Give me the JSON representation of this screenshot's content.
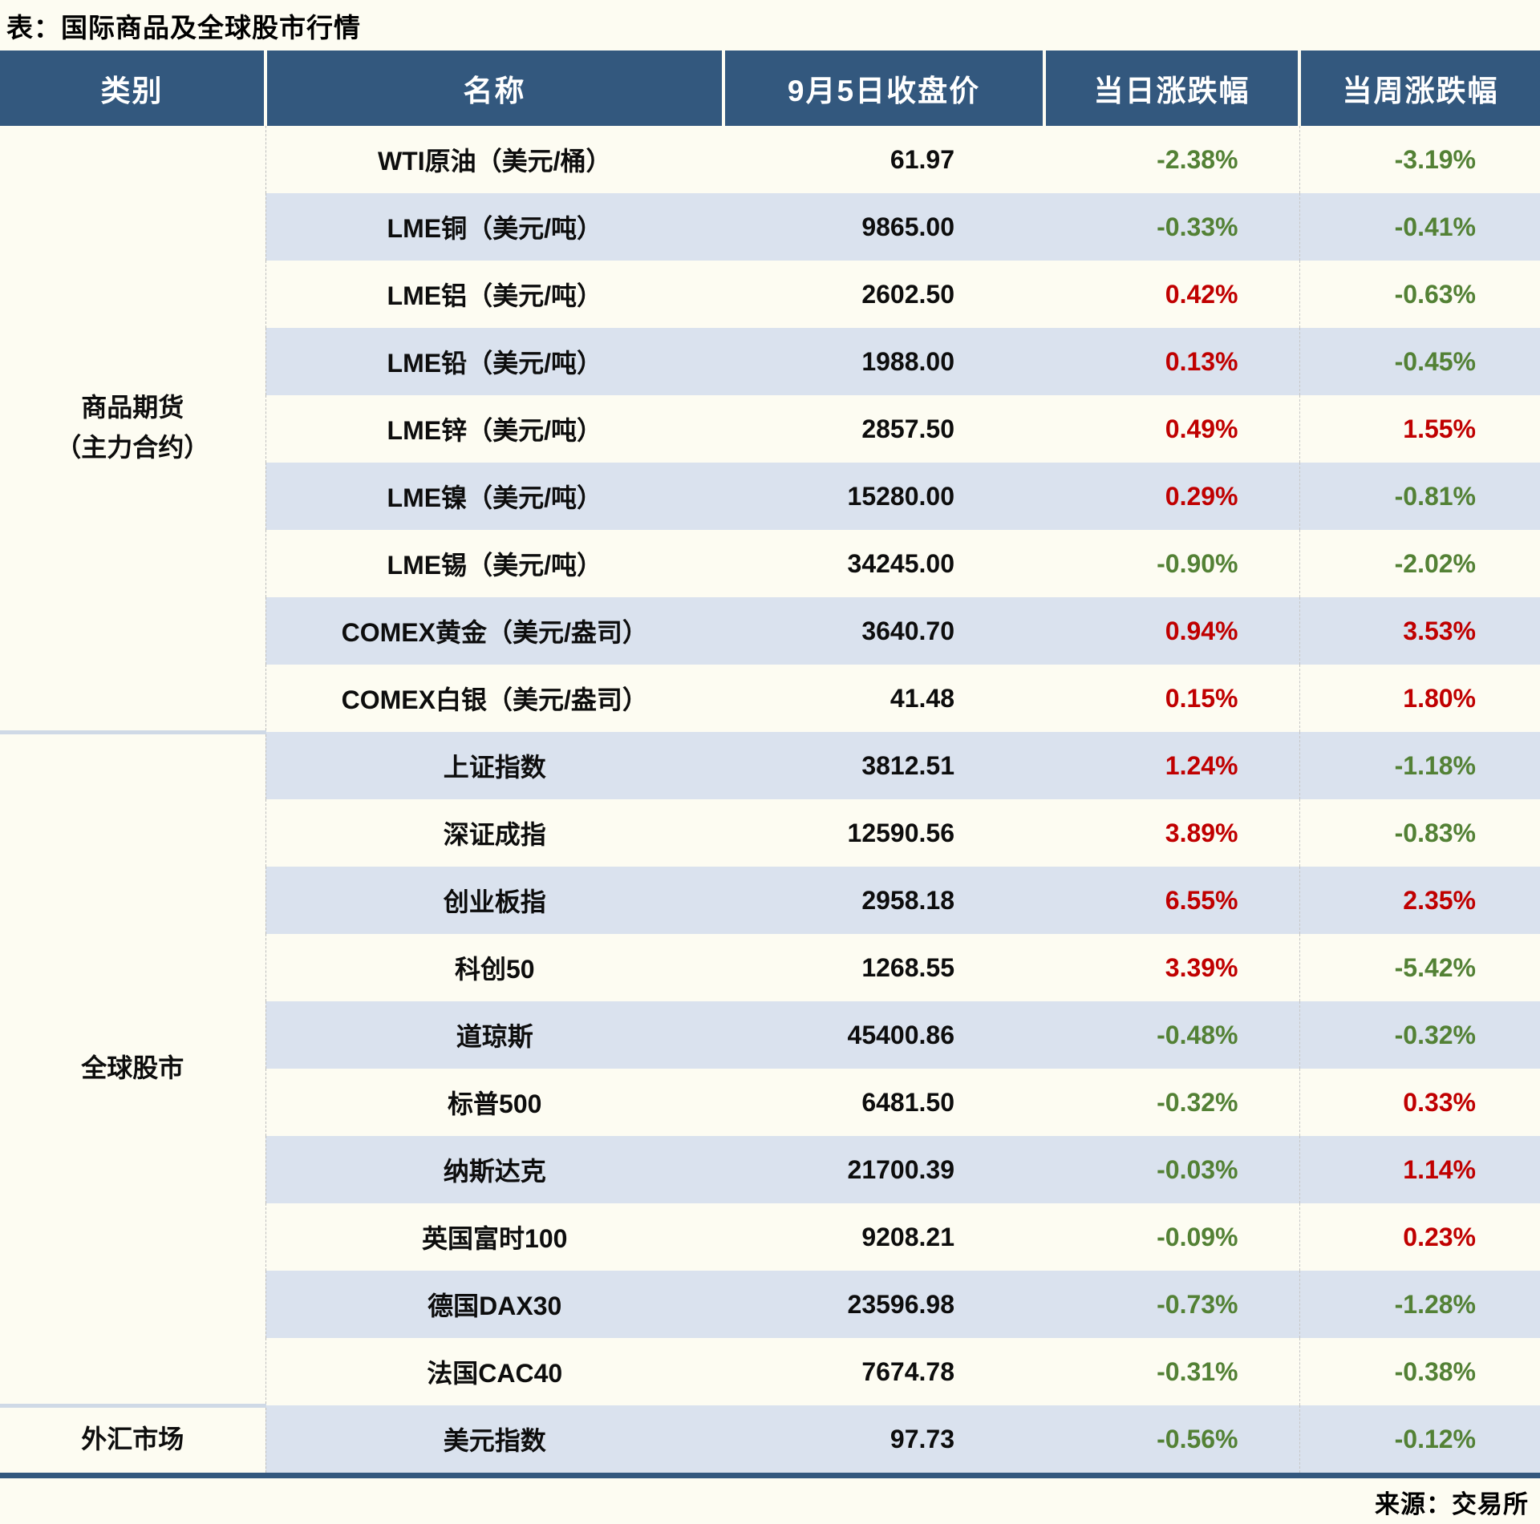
{
  "title": "表：国际商品及全球股市行情",
  "source": "来源：交易所",
  "colors": {
    "header_background": "#33587E",
    "row_stripe": "#dae2ee",
    "page_background": "#fdfcf2",
    "positive_change": "#C00000",
    "negative_change": "#538135",
    "header_text": "#ffffff",
    "body_text": "#0d0d0d"
  },
  "chart_data": {
    "type": "table",
    "title": "国际商品及全球股市行情",
    "columns": [
      "类别",
      "名称",
      "9月5日收盘价",
      "当日涨跌幅",
      "当周涨跌幅"
    ],
    "sections": [
      {
        "category": [
          "商品期货",
          "（主力合约）"
        ],
        "rows": [
          {
            "name": "WTI原油（美元/桶）",
            "close": "61.97",
            "day_change": "-2.38%",
            "week_change": "-3.19%"
          },
          {
            "name": "LME铜（美元/吨）",
            "close": "9865.00",
            "day_change": "-0.33%",
            "week_change": "-0.41%"
          },
          {
            "name": "LME铝（美元/吨）",
            "close": "2602.50",
            "day_change": "0.42%",
            "week_change": "-0.63%"
          },
          {
            "name": "LME铅（美元/吨）",
            "close": "1988.00",
            "day_change": "0.13%",
            "week_change": "-0.45%"
          },
          {
            "name": "LME锌（美元/吨）",
            "close": "2857.50",
            "day_change": "0.49%",
            "week_change": "1.55%"
          },
          {
            "name": "LME镍（美元/吨）",
            "close": "15280.00",
            "day_change": "0.29%",
            "week_change": "-0.81%"
          },
          {
            "name": "LME锡（美元/吨）",
            "close": "34245.00",
            "day_change": "-0.90%",
            "week_change": "-2.02%"
          },
          {
            "name": "COMEX黄金（美元/盎司）",
            "close": "3640.70",
            "day_change": "0.94%",
            "week_change": "3.53%"
          },
          {
            "name": "COMEX白银（美元/盎司）",
            "close": "41.48",
            "day_change": "0.15%",
            "week_change": "1.80%"
          }
        ]
      },
      {
        "category": [
          "全球股市"
        ],
        "rows": [
          {
            "name": "上证指数",
            "close": "3812.51",
            "day_change": "1.24%",
            "week_change": "-1.18%"
          },
          {
            "name": "深证成指",
            "close": "12590.56",
            "day_change": "3.89%",
            "week_change": "-0.83%"
          },
          {
            "name": "创业板指",
            "close": "2958.18",
            "day_change": "6.55%",
            "week_change": "2.35%"
          },
          {
            "name": "科创50",
            "close": "1268.55",
            "day_change": "3.39%",
            "week_change": "-5.42%"
          },
          {
            "name": "道琼斯",
            "close": "45400.86",
            "day_change": "-0.48%",
            "week_change": "-0.32%"
          },
          {
            "name": "标普500",
            "close": "6481.50",
            "day_change": "-0.32%",
            "week_change": "0.33%"
          },
          {
            "name": "纳斯达克",
            "close": "21700.39",
            "day_change": "-0.03%",
            "week_change": "1.14%"
          },
          {
            "name": "英国富时100",
            "close": "9208.21",
            "day_change": "-0.09%",
            "week_change": "0.23%"
          },
          {
            "name": "德国DAX30",
            "close": "23596.98",
            "day_change": "-0.73%",
            "week_change": "-1.28%"
          },
          {
            "name": "法国CAC40",
            "close": "7674.78",
            "day_change": "-0.31%",
            "week_change": "-0.38%"
          }
        ]
      },
      {
        "category": [
          "外汇市场"
        ],
        "rows": [
          {
            "name": "美元指数",
            "close": "97.73",
            "day_change": "-0.56%",
            "week_change": "-0.12%"
          }
        ]
      }
    ]
  }
}
